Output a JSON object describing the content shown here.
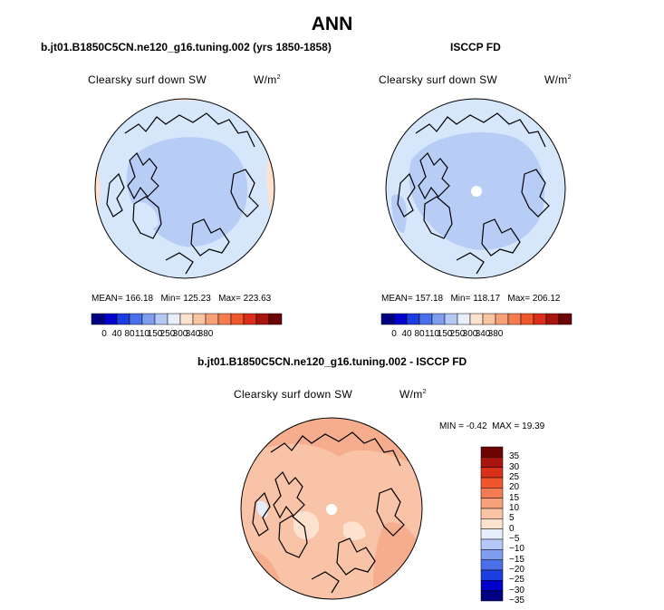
{
  "page_title": "ANN",
  "chart_data": [
    {
      "type": "heatmap",
      "projection": "north-polar-stereographic",
      "panel_title": "b.jt01.B1850C5CN.ne120_g16.tuning.002 (yrs 1850-1858)",
      "variable": "Clearsky surf down SW",
      "units_base": "W/m",
      "units_exp": "2",
      "stats": {
        "mean_label": "MEAN=",
        "mean": "166.18",
        "min_label": "Min=",
        "min": "125.23",
        "max_label": "Max=",
        "max": "223.63"
      },
      "colorbar_ticks": [
        "0",
        "40",
        "80",
        "110",
        "150",
        "250",
        "300",
        "340",
        "380"
      ]
    },
    {
      "type": "heatmap",
      "projection": "north-polar-stereographic",
      "panel_title": "ISCCP FD",
      "variable": "Clearsky surf down SW",
      "units_base": "W/m",
      "units_exp": "2",
      "stats": {
        "mean_label": "MEAN=",
        "mean": "157.18",
        "min_label": "Min=",
        "min": "118.17",
        "max_label": "Max=",
        "max": "206.12"
      },
      "colorbar_ticks": [
        "0",
        "40",
        "80",
        "110",
        "150",
        "250",
        "300",
        "340",
        "380"
      ]
    },
    {
      "type": "heatmap",
      "projection": "north-polar-stereographic",
      "panel_title": "b.jt01.B1850C5CN.ne120_g16.tuning.002 - ISCCP FD",
      "variable": "Clearsky surf down SW",
      "units_base": "W/m",
      "units_exp": "2",
      "stats": {
        "min_label": "MIN =",
        "min": "-0.42",
        "max_label": "MAX =",
        "max": "19.39"
      },
      "colorbar_ticks": [
        "35",
        "30",
        "25",
        "20",
        "15",
        "10",
        "5",
        "0",
        "−5",
        "−10",
        "−15",
        "−20",
        "−25",
        "−30",
        "−35"
      ]
    }
  ],
  "colors": {
    "abs_scale": [
      "#000080",
      "#0000cd",
      "#1a3ee0",
      "#4a6fe8",
      "#7f9ef0",
      "#b5c8f8",
      "#e6eefc",
      "#fde3cf",
      "#fac3a4",
      "#f7a17a",
      "#f57c52",
      "#f0552e",
      "#d9301a",
      "#a8150e",
      "#6e0505"
    ],
    "diff_scale": [
      "#6e0505",
      "#a8150e",
      "#d9301a",
      "#f0552e",
      "#f57c52",
      "#f7a17a",
      "#fac3a4",
      "#fde3cf",
      "#e6eefc",
      "#b5c8f8",
      "#7f9ef0",
      "#4a6fe8",
      "#1a3ee0",
      "#0000cd",
      "#000080"
    ],
    "ocean_light_blue": "#d6e6fb",
    "ice_mid_blue": "#b7cdf5",
    "diff_fill": "#f9c3a7",
    "diff_dark": "#f6ad8e",
    "edge_peach": "#fde3cf"
  }
}
